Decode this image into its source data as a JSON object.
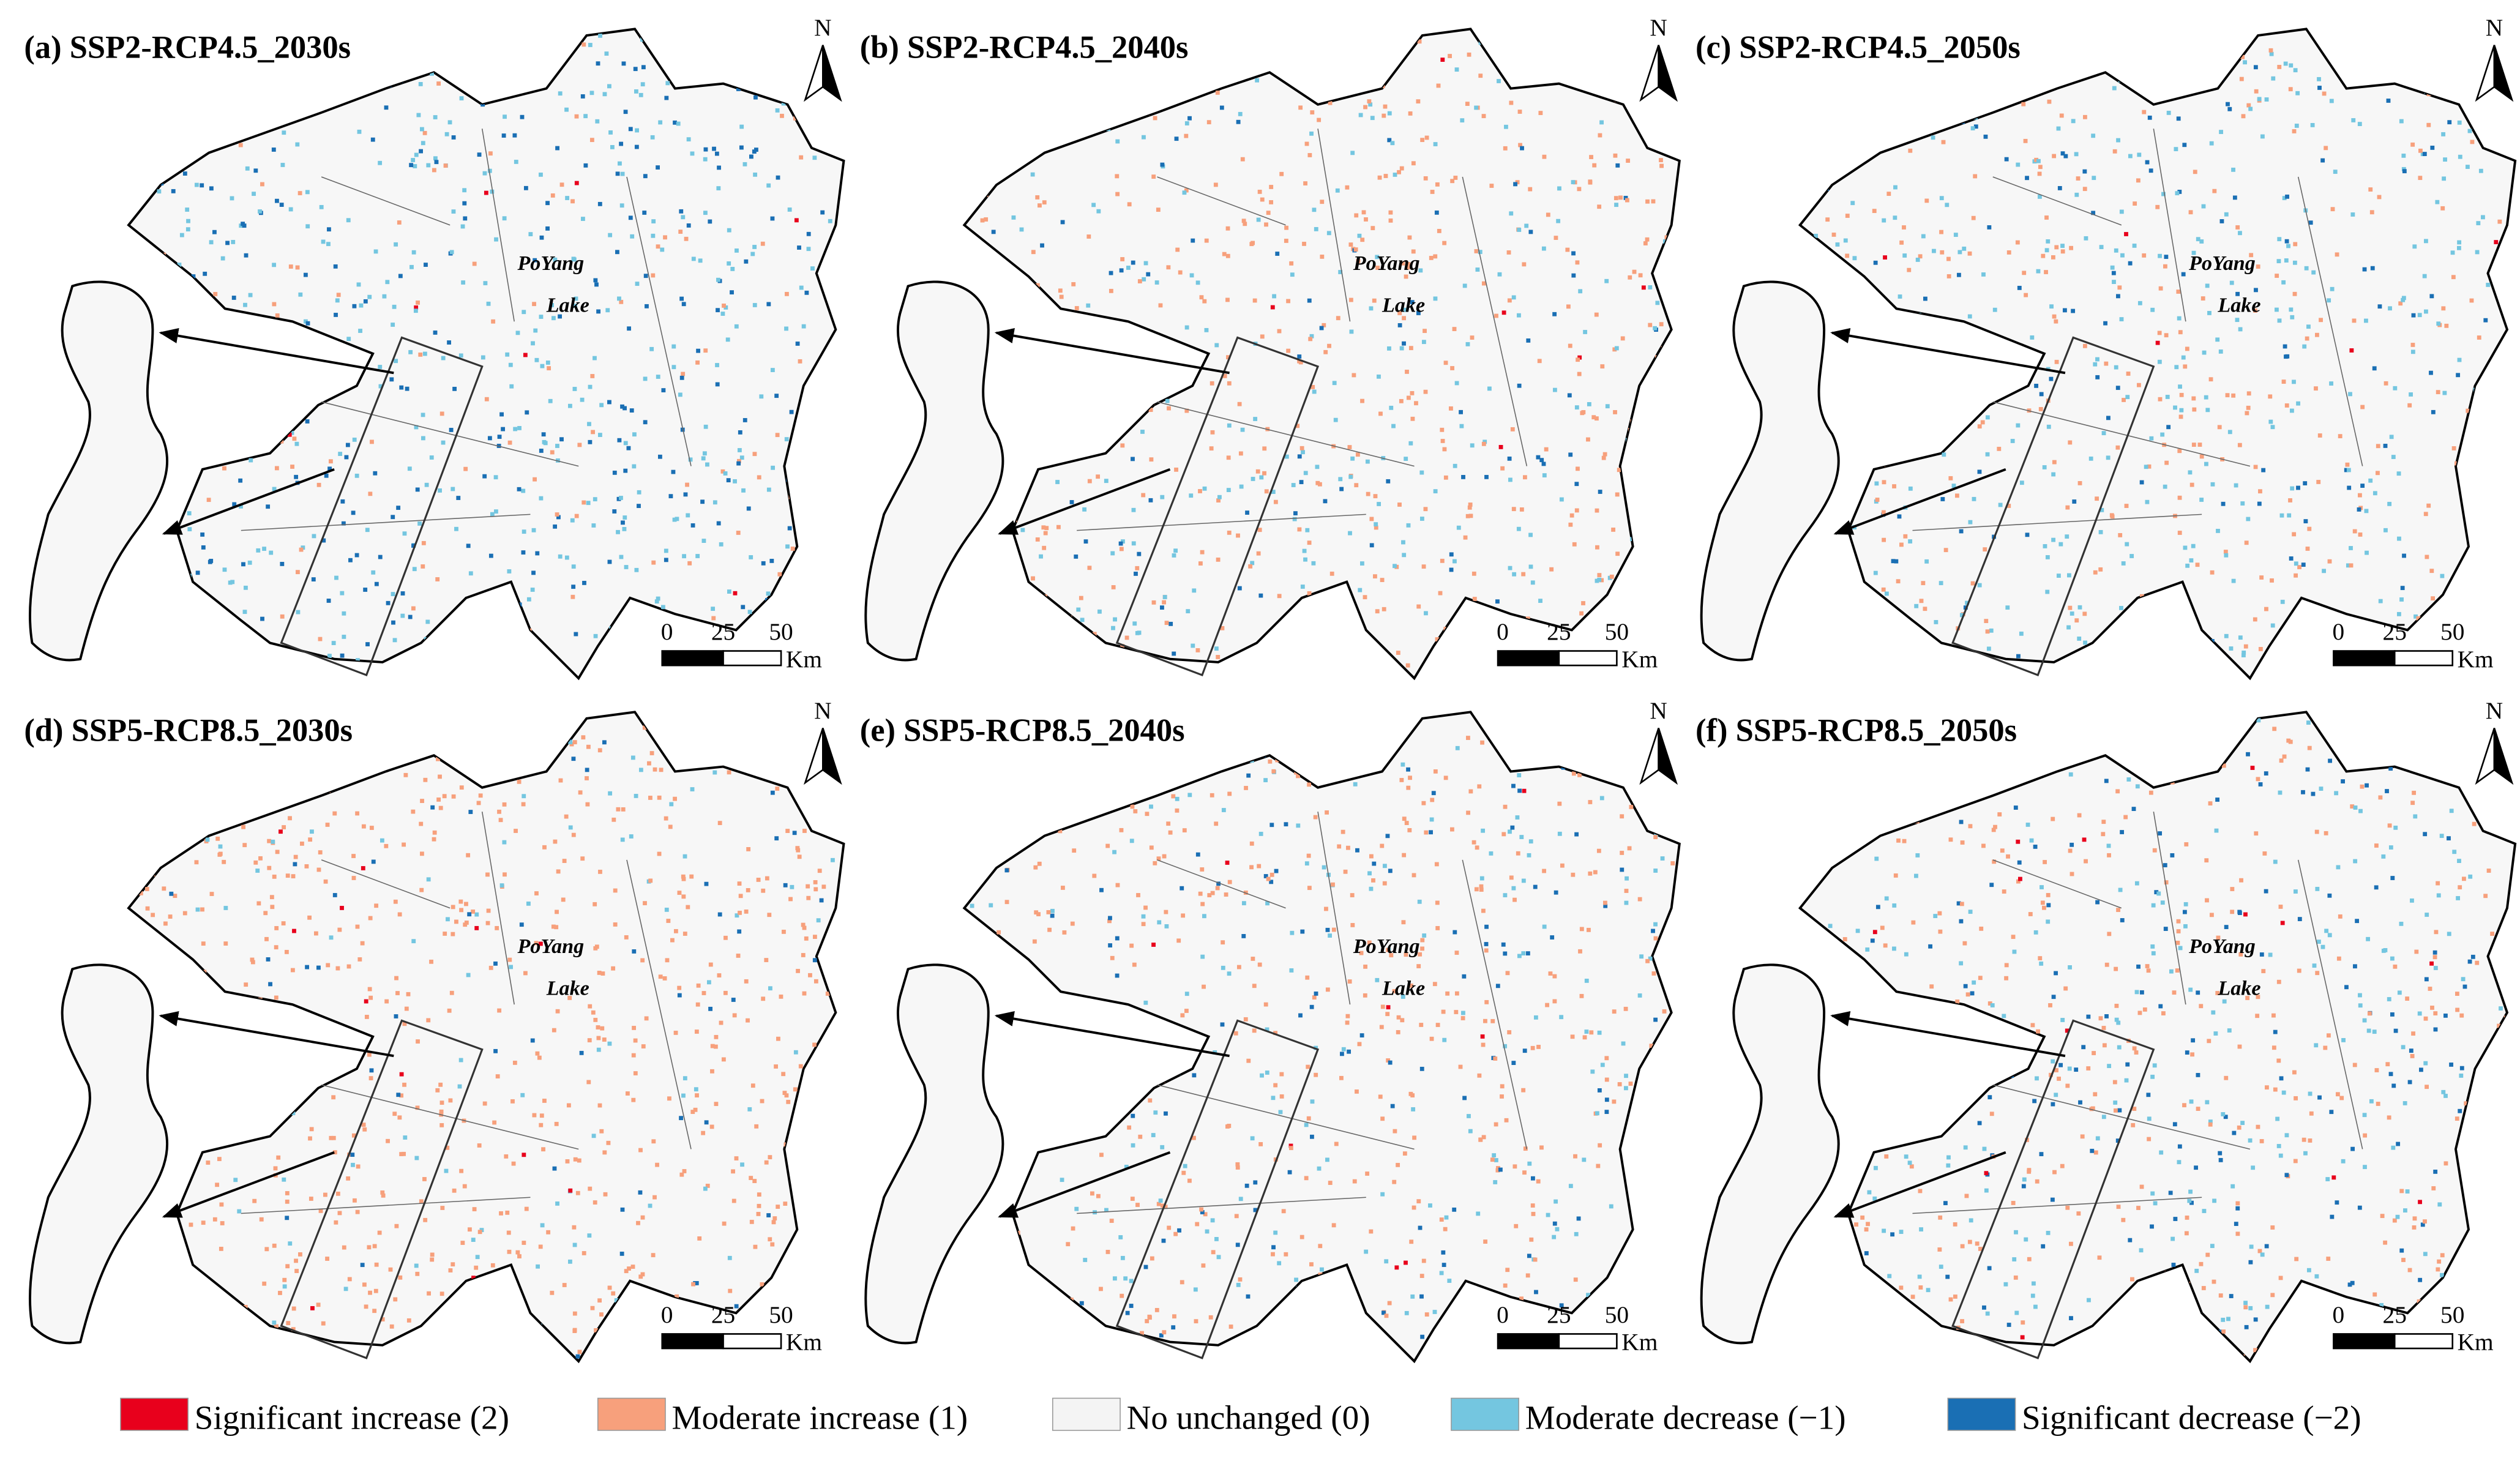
{
  "panels": [
    {
      "title": "(a) SSP2-RCP4.5_2030s",
      "north": "N",
      "lake_label": [
        "PoYang",
        "Lake"
      ],
      "scale": {
        "ticks": [
          "0",
          "25",
          "50"
        ],
        "unit": "Km"
      }
    },
    {
      "title": "(b) SSP2-RCP4.5_2040s",
      "north": "N",
      "lake_label": [
        "PoYang",
        "Lake"
      ],
      "scale": {
        "ticks": [
          "0",
          "25",
          "50"
        ],
        "unit": "Km"
      }
    },
    {
      "title": "(c) SSP2-RCP4.5_2050s",
      "north": "N",
      "lake_label": [
        "PoYang",
        "Lake"
      ],
      "scale": {
        "ticks": [
          "0",
          "25",
          "50"
        ],
        "unit": "Km"
      }
    },
    {
      "title": "(d) SSP5-RCP8.5_2030s",
      "north": "N",
      "lake_label": [
        "PoYang",
        "Lake"
      ],
      "scale": {
        "ticks": [
          "0",
          "25",
          "50"
        ],
        "unit": "Km"
      }
    },
    {
      "title": "(e) SSP5-RCP8.5_2040s",
      "north": "N",
      "lake_label": [
        "PoYang",
        "Lake"
      ],
      "scale": {
        "ticks": [
          "0",
          "25",
          "50"
        ],
        "unit": "Km"
      }
    },
    {
      "title": "(f) SSP5-RCP8.5_2050s",
      "north": "N",
      "lake_label": [
        "PoYang",
        "Lake"
      ],
      "scale": {
        "ticks": [
          "0",
          "25",
          "50"
        ],
        "unit": "Km"
      }
    }
  ],
  "legend": [
    {
      "label": "Significant increase (2)",
      "color": "#e8001c"
    },
    {
      "label": "Moderate increase (1)",
      "color": "#f7a07c"
    },
    {
      "label": "No unchanged (0)",
      "color": "#f4f4f4"
    },
    {
      "label": "Moderate decrease (−1)",
      "color": "#74c6e0"
    },
    {
      "label": "Significant decrease (−2)",
      "color": "#1a6fb4"
    }
  ]
}
